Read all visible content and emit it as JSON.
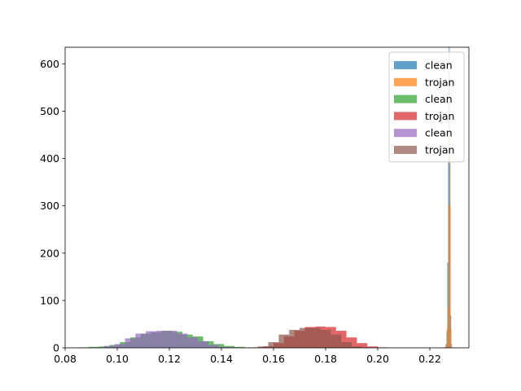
{
  "chart_data": {
    "type": "bar",
    "title": "",
    "xlabel": "",
    "ylabel": "",
    "xlim": [
      0.08,
      0.235
    ],
    "ylim": [
      0,
      635
    ],
    "x_ticks": [
      0.08,
      0.1,
      0.12,
      0.14,
      0.16,
      0.18,
      0.2,
      0.22
    ],
    "x_tick_labels": [
      "0.08",
      "0.10",
      "0.12",
      "0.14",
      "0.16",
      "0.18",
      "0.20",
      "0.22"
    ],
    "y_ticks": [
      0,
      100,
      200,
      300,
      400,
      500,
      600
    ],
    "y_tick_labels": [
      "0",
      "100",
      "200",
      "300",
      "400",
      "500",
      "600"
    ],
    "grid": false,
    "legend_position": "top-right",
    "series": [
      {
        "name": "clean",
        "color": "#1f77b4",
        "bin_edges": [
          0.2258,
          0.2261,
          0.2264,
          0.2267,
          0.227,
          0.2273,
          0.2276,
          0.2279,
          0.2282,
          0.2285
        ],
        "counts": [
          2,
          8,
          35,
          180,
          400,
          640,
          390,
          68,
          8
        ]
      },
      {
        "name": "trojan",
        "color": "#ff7f0e",
        "bin_edges": [
          0.2262,
          0.2265,
          0.2268,
          0.2271,
          0.2274,
          0.2277,
          0.228,
          0.2283
        ],
        "counts": [
          6,
          40,
          85,
          300,
          450,
          300,
          40
        ]
      },
      {
        "name": "clean",
        "color": "#2ca02c",
        "bin_edges": [
          0.085,
          0.089,
          0.093,
          0.097,
          0.101,
          0.105,
          0.109,
          0.113,
          0.117,
          0.121,
          0.125,
          0.129,
          0.133,
          0.137,
          0.141,
          0.145,
          0.149
        ],
        "counts": [
          1,
          2,
          3,
          6,
          12,
          22,
          30,
          33,
          36,
          34,
          28,
          24,
          14,
          8,
          4,
          2
        ]
      },
      {
        "name": "trojan",
        "color": "#d62728",
        "bin_edges": [
          0.152,
          0.156,
          0.16,
          0.164,
          0.168,
          0.172,
          0.176,
          0.18,
          0.184,
          0.188,
          0.192,
          0.196,
          0.2,
          0.204
        ],
        "counts": [
          1,
          3,
          10,
          24,
          36,
          44,
          45,
          44,
          36,
          22,
          10,
          3,
          1
        ]
      },
      {
        "name": "clean",
        "color": "#9467bd",
        "bin_edges": [
          0.091,
          0.095,
          0.099,
          0.103,
          0.107,
          0.111,
          0.115,
          0.119,
          0.123,
          0.127,
          0.131,
          0.135,
          0.139,
          0.143,
          0.147
        ],
        "counts": [
          1,
          4,
          8,
          20,
          30,
          35,
          36,
          36,
          30,
          22,
          14,
          6,
          2,
          1
        ]
      },
      {
        "name": "trojan",
        "color": "#8c564b",
        "bin_edges": [
          0.15,
          0.154,
          0.158,
          0.162,
          0.166,
          0.17,
          0.174,
          0.178,
          0.182,
          0.186,
          0.19,
          0.194,
          0.198
        ],
        "counts": [
          1,
          3,
          12,
          28,
          38,
          42,
          42,
          38,
          28,
          12,
          3,
          1
        ]
      }
    ]
  }
}
